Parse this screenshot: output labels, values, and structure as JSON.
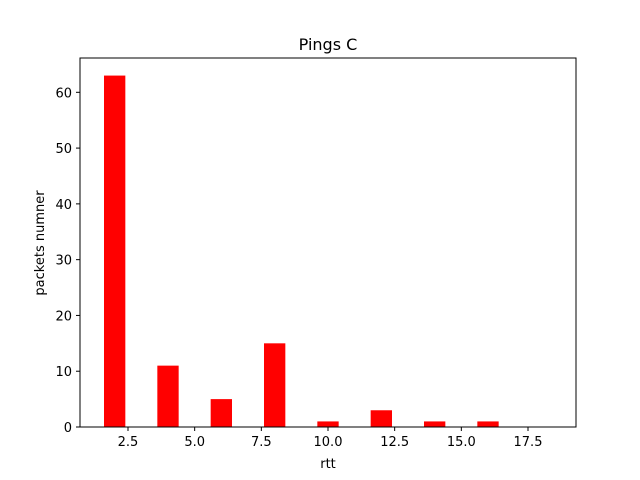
{
  "chart_data": {
    "type": "bar",
    "title": "Pings C",
    "xlabel": "rtt",
    "ylabel": "packets numner",
    "xlim": [
      0.7,
      19.3
    ],
    "ylim": [
      0,
      66.15
    ],
    "bar_color": "#ff0000",
    "bar_width": 0.8,
    "bars": [
      {
        "x": 2,
        "value": 63
      },
      {
        "x": 4,
        "value": 11
      },
      {
        "x": 6,
        "value": 5
      },
      {
        "x": 8,
        "value": 15
      },
      {
        "x": 10,
        "value": 1
      },
      {
        "x": 12,
        "value": 3
      },
      {
        "x": 14,
        "value": 1
      },
      {
        "x": 16,
        "value": 1
      },
      {
        "x": 18,
        "value": 0
      }
    ],
    "xticks": [
      2.5,
      5.0,
      7.5,
      10.0,
      12.5,
      15.0,
      17.5
    ],
    "xtick_labels": [
      "2.5",
      "5.0",
      "7.5",
      "10.0",
      "12.5",
      "15.0",
      "17.5"
    ],
    "yticks": [
      0,
      10,
      20,
      30,
      40,
      50,
      60
    ],
    "ytick_labels": [
      "0",
      "10",
      "20",
      "30",
      "40",
      "50",
      "60"
    ],
    "grid": false,
    "legend": "none"
  }
}
